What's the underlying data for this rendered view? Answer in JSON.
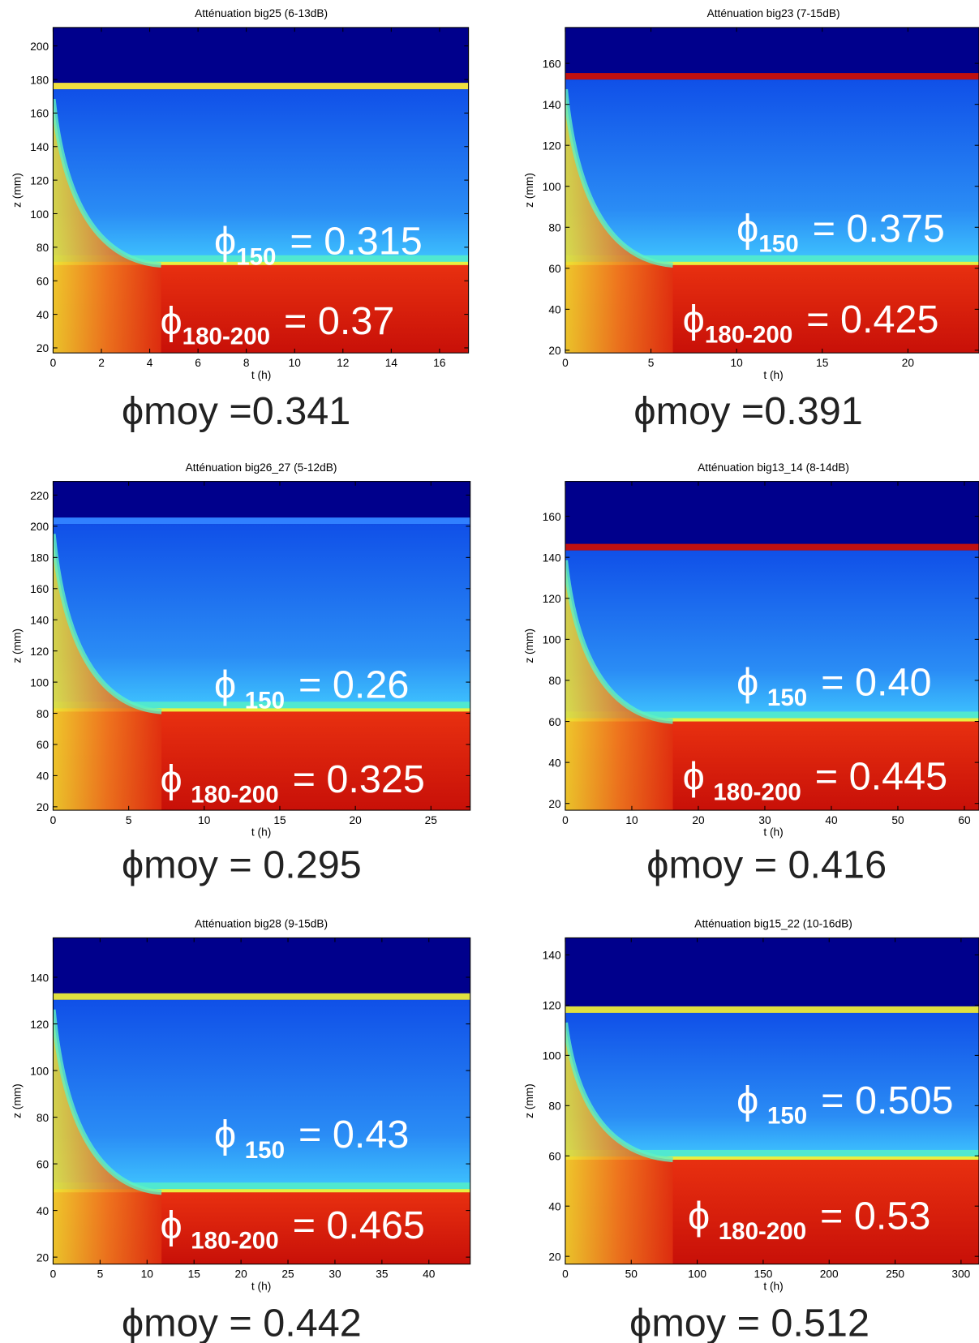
{
  "chart_data": [
    {
      "type": "heatmap",
      "title": "Atténuation big25 (6-13dB)",
      "xlabel": "t (h)",
      "ylabel": "z (mm)",
      "xlim": [
        0,
        17.2
      ],
      "ylim": [
        17,
        211
      ],
      "xticks": [
        0,
        2,
        4,
        6,
        8,
        10,
        12,
        14,
        16
      ],
      "yticks": [
        20,
        40,
        60,
        80,
        100,
        120,
        140,
        160,
        180,
        200
      ],
      "annotations": [
        {
          "symbol": "ϕ",
          "subscript": "150",
          "text": "= 0.315"
        },
        {
          "symbol": "ϕ",
          "subscript": "180-200",
          "text": "= 0.37"
        }
      ],
      "mean": "ϕmoy =0.341"
    },
    {
      "type": "heatmap",
      "title": "Atténuation big23 (7-15dB)",
      "xlabel": "t (h)",
      "ylabel": "z (mm)",
      "xlim": [
        0,
        24.15
      ],
      "ylim": [
        18.7,
        177.5
      ],
      "xticks": [
        0,
        5,
        10,
        15,
        20
      ],
      "yticks": [
        20,
        40,
        60,
        80,
        100,
        120,
        140,
        160
      ],
      "annotations": [
        {
          "symbol": "ϕ",
          "subscript": "150",
          "text": "= 0.375"
        },
        {
          "symbol": "ϕ",
          "subscript": "180-200",
          "text": "= 0.425"
        }
      ],
      "mean": "ϕmoy =0.391"
    },
    {
      "type": "heatmap",
      "title": "Atténuation big26_27 (5-12dB)",
      "xlabel": "t (h)",
      "ylabel": "z (mm)",
      "xlim": [
        0,
        27.6
      ],
      "ylim": [
        17.8,
        228.8
      ],
      "xticks": [
        0,
        5,
        10,
        15,
        20,
        25
      ],
      "yticks": [
        20,
        40,
        60,
        80,
        100,
        120,
        140,
        160,
        180,
        200,
        220
      ],
      "annotations": [
        {
          "symbol": "ϕ",
          "subscript": "150",
          "text": "= 0.26"
        },
        {
          "symbol": "ϕ",
          "subscript": "180-200",
          "text": "= 0.325"
        }
      ],
      "mean": "ϕmoy = 0.295"
    },
    {
      "type": "heatmap",
      "title": "Atténuation big13_14 (8-14dB)",
      "xlabel": "t (h)",
      "ylabel": "z (mm)",
      "xlim": [
        0,
        62.2
      ],
      "ylim": [
        16.7,
        177
      ],
      "xticks": [
        0,
        10,
        20,
        30,
        40,
        50,
        60
      ],
      "yticks": [
        20,
        40,
        60,
        80,
        100,
        120,
        140,
        160
      ],
      "annotations": [
        {
          "symbol": "ϕ",
          "subscript": "150",
          "text": "= 0.40"
        },
        {
          "symbol": "ϕ",
          "subscript": "180-200",
          "text": "= 0.445"
        }
      ],
      "mean": "ϕmoy = 0.416"
    },
    {
      "type": "heatmap",
      "title": "Atténuation big28 (9-15dB)",
      "xlabel": "t (h)",
      "ylabel": "z (mm)",
      "xlim": [
        0,
        44.4
      ],
      "ylim": [
        17,
        156.9
      ],
      "xticks": [
        0,
        5,
        10,
        15,
        20,
        25,
        30,
        35,
        40
      ],
      "yticks": [
        20,
        40,
        60,
        80,
        100,
        120,
        140
      ],
      "annotations": [
        {
          "symbol": "ϕ",
          "subscript": "150",
          "text": "= 0.43"
        },
        {
          "symbol": "ϕ",
          "subscript": "180-200",
          "text": "= 0.465"
        }
      ],
      "mean": "ϕmoy = 0.442"
    },
    {
      "type": "heatmap",
      "title": "Atténuation big15_22 (10-16dB)",
      "xlabel": "t (h)",
      "ylabel": "z (mm)",
      "xlim": [
        0,
        313.6
      ],
      "ylim": [
        16.9,
        146.8
      ],
      "xticks": [
        0,
        50,
        100,
        150,
        200,
        250,
        300
      ],
      "yticks": [
        20,
        40,
        60,
        80,
        100,
        120,
        140
      ],
      "annotations": [
        {
          "symbol": "ϕ",
          "subscript": "150",
          "text": "= 0.505"
        },
        {
          "symbol": "ϕ",
          "subscript": "180-200",
          "text": "= 0.53"
        }
      ],
      "mean": "ϕmoy = 0.512"
    }
  ]
}
